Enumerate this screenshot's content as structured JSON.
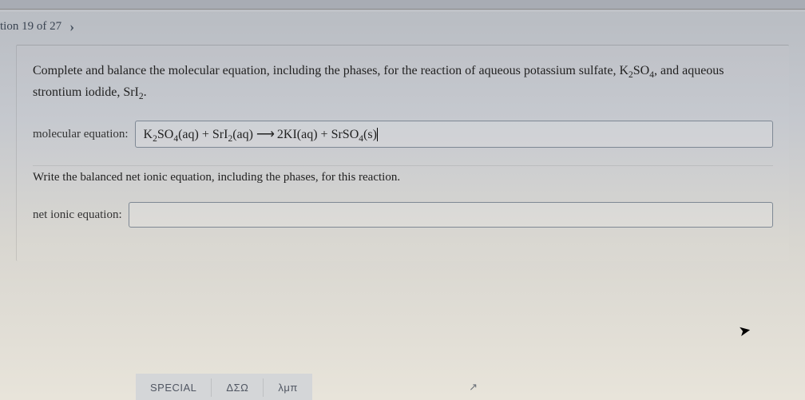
{
  "nav": {
    "label": "tion 19 of 27"
  },
  "question": {
    "prompt_html": "Complete and balance the molecular equation, including the phases, for the reaction of aqueous potassium sulfate, K<sub>2</sub>SO<sub>4</sub>, and aqueous strontium iodide, SrI<sub>2</sub>.",
    "molecular_label": "molecular equation:",
    "molecular_value_html": "K<sub>2</sub>SO<sub>4</sub>(aq) + SrI<sub>2</sub>(aq) <span class=\"arrow\">⟶</span> 2KI(aq) + SrSO<sub>4</sub>(s)<span class=\"cursor-caret\"></span>",
    "net_ionic_prompt": "Write the balanced net ionic equation, including the phases, for this reaction.",
    "net_ionic_label": "net ionic equation:",
    "net_ionic_value_html": ""
  },
  "toolbar": {
    "special": "SPECIAL",
    "greek_upper": "ΔΣΩ",
    "greek_lower": "λμπ"
  },
  "colors": {
    "text": "#222222",
    "border": "#7e8894",
    "nav_text": "#3a4452"
  }
}
